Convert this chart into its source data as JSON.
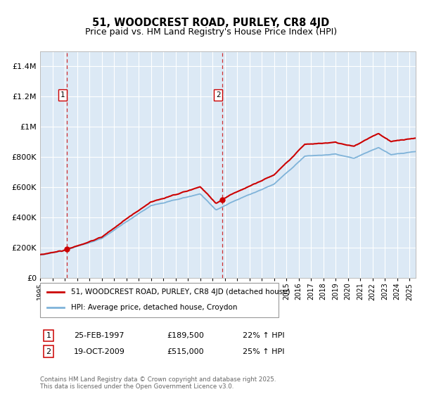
{
  "title": "51, WOODCREST ROAD, PURLEY, CR8 4JD",
  "subtitle": "Price paid vs. HM Land Registry's House Price Index (HPI)",
  "ytick_values": [
    0,
    200000,
    400000,
    600000,
    800000,
    1000000,
    1200000,
    1400000
  ],
  "ylim": [
    0,
    1500000
  ],
  "xlim_start": 1995.0,
  "xlim_end": 2025.5,
  "bg_color": "#dce9f5",
  "grid_color": "#ffffff",
  "red_line_color": "#cc0000",
  "blue_line_color": "#7fb3d9",
  "sale1_year": 1997.15,
  "sale1_price": 189500,
  "sale1_label": "1",
  "sale1_hpi_pct": "22% ↑ HPI",
  "sale1_date_str": "25-FEB-1997",
  "sale1_price_str": "£189,500",
  "sale2_year": 2009.8,
  "sale2_price": 515000,
  "sale2_label": "2",
  "sale2_hpi_pct": "25% ↑ HPI",
  "sale2_date_str": "19-OCT-2009",
  "sale2_price_str": "£515,000",
  "legend_label1": "51, WOODCREST ROAD, PURLEY, CR8 4JD (detached house)",
  "legend_label2": "HPI: Average price, detached house, Croydon",
  "footer": "Contains HM Land Registry data © Crown copyright and database right 2025.\nThis data is licensed under the Open Government Licence v3.0.",
  "xtick_years": [
    1995,
    1996,
    1997,
    1998,
    1999,
    2000,
    2001,
    2002,
    2003,
    2004,
    2005,
    2006,
    2007,
    2008,
    2009,
    2010,
    2011,
    2012,
    2013,
    2014,
    2015,
    2016,
    2017,
    2018,
    2019,
    2020,
    2021,
    2022,
    2023,
    2024,
    2025
  ]
}
